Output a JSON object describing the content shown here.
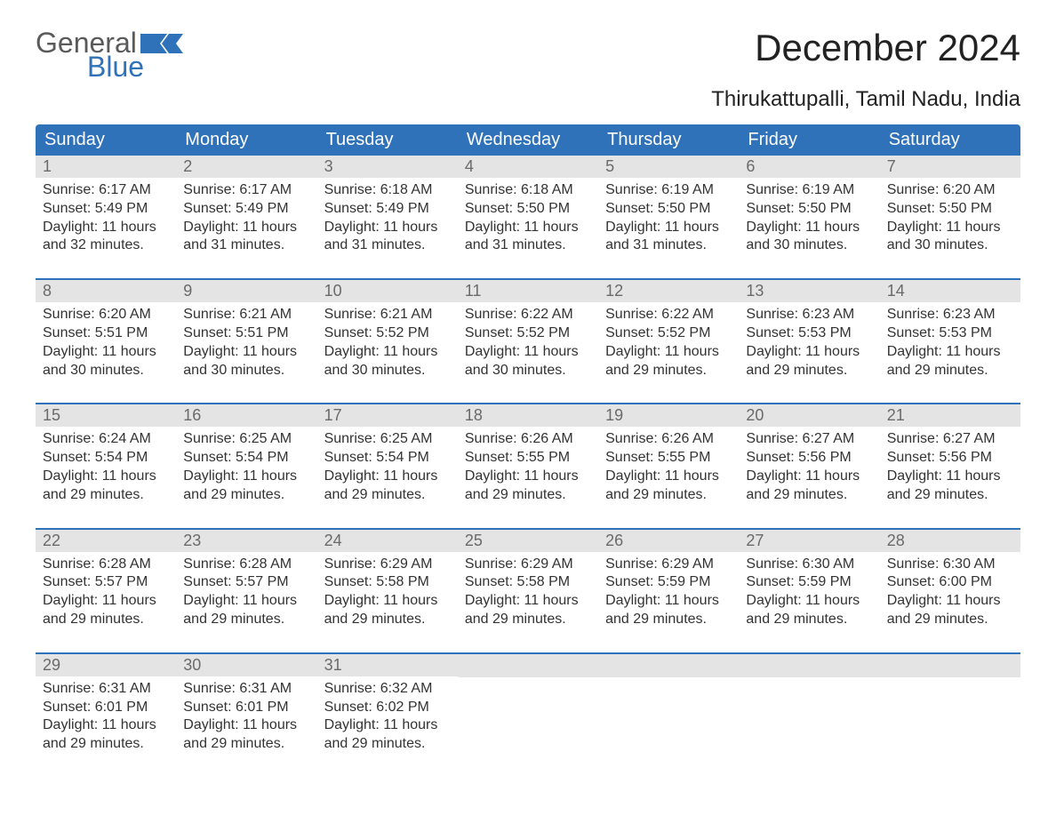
{
  "logo": {
    "text_general": "General",
    "text_blue": "Blue"
  },
  "title": "December 2024",
  "subtitle": "Thirukattupalli, Tamil Nadu, India",
  "colors": {
    "header_bg": "#2f72b9",
    "header_text": "#ffffff",
    "daynum_bg": "#e4e4e4",
    "daynum_text": "#6a6a6a",
    "body_text": "#333333",
    "title_text": "#222222",
    "logo_general": "#5a5a5a",
    "logo_blue": "#2f72b9",
    "background": "#ffffff"
  },
  "fonts": {
    "title_size": 42,
    "subtitle_size": 24,
    "dayheader_size": 20,
    "daynum_size": 18,
    "content_size": 16,
    "logo_size": 32
  },
  "day_headers": [
    "Sunday",
    "Monday",
    "Tuesday",
    "Wednesday",
    "Thursday",
    "Friday",
    "Saturday"
  ],
  "weeks": [
    [
      {
        "num": "1",
        "sunrise": "Sunrise: 6:17 AM",
        "sunset": "Sunset: 5:49 PM",
        "daylight1": "Daylight: 11 hours",
        "daylight2": "and 32 minutes."
      },
      {
        "num": "2",
        "sunrise": "Sunrise: 6:17 AM",
        "sunset": "Sunset: 5:49 PM",
        "daylight1": "Daylight: 11 hours",
        "daylight2": "and 31 minutes."
      },
      {
        "num": "3",
        "sunrise": "Sunrise: 6:18 AM",
        "sunset": "Sunset: 5:49 PM",
        "daylight1": "Daylight: 11 hours",
        "daylight2": "and 31 minutes."
      },
      {
        "num": "4",
        "sunrise": "Sunrise: 6:18 AM",
        "sunset": "Sunset: 5:50 PM",
        "daylight1": "Daylight: 11 hours",
        "daylight2": "and 31 minutes."
      },
      {
        "num": "5",
        "sunrise": "Sunrise: 6:19 AM",
        "sunset": "Sunset: 5:50 PM",
        "daylight1": "Daylight: 11 hours",
        "daylight2": "and 31 minutes."
      },
      {
        "num": "6",
        "sunrise": "Sunrise: 6:19 AM",
        "sunset": "Sunset: 5:50 PM",
        "daylight1": "Daylight: 11 hours",
        "daylight2": "and 30 minutes."
      },
      {
        "num": "7",
        "sunrise": "Sunrise: 6:20 AM",
        "sunset": "Sunset: 5:50 PM",
        "daylight1": "Daylight: 11 hours",
        "daylight2": "and 30 minutes."
      }
    ],
    [
      {
        "num": "8",
        "sunrise": "Sunrise: 6:20 AM",
        "sunset": "Sunset: 5:51 PM",
        "daylight1": "Daylight: 11 hours",
        "daylight2": "and 30 minutes."
      },
      {
        "num": "9",
        "sunrise": "Sunrise: 6:21 AM",
        "sunset": "Sunset: 5:51 PM",
        "daylight1": "Daylight: 11 hours",
        "daylight2": "and 30 minutes."
      },
      {
        "num": "10",
        "sunrise": "Sunrise: 6:21 AM",
        "sunset": "Sunset: 5:52 PM",
        "daylight1": "Daylight: 11 hours",
        "daylight2": "and 30 minutes."
      },
      {
        "num": "11",
        "sunrise": "Sunrise: 6:22 AM",
        "sunset": "Sunset: 5:52 PM",
        "daylight1": "Daylight: 11 hours",
        "daylight2": "and 30 minutes."
      },
      {
        "num": "12",
        "sunrise": "Sunrise: 6:22 AM",
        "sunset": "Sunset: 5:52 PM",
        "daylight1": "Daylight: 11 hours",
        "daylight2": "and 29 minutes."
      },
      {
        "num": "13",
        "sunrise": "Sunrise: 6:23 AM",
        "sunset": "Sunset: 5:53 PM",
        "daylight1": "Daylight: 11 hours",
        "daylight2": "and 29 minutes."
      },
      {
        "num": "14",
        "sunrise": "Sunrise: 6:23 AM",
        "sunset": "Sunset: 5:53 PM",
        "daylight1": "Daylight: 11 hours",
        "daylight2": "and 29 minutes."
      }
    ],
    [
      {
        "num": "15",
        "sunrise": "Sunrise: 6:24 AM",
        "sunset": "Sunset: 5:54 PM",
        "daylight1": "Daylight: 11 hours",
        "daylight2": "and 29 minutes."
      },
      {
        "num": "16",
        "sunrise": "Sunrise: 6:25 AM",
        "sunset": "Sunset: 5:54 PM",
        "daylight1": "Daylight: 11 hours",
        "daylight2": "and 29 minutes."
      },
      {
        "num": "17",
        "sunrise": "Sunrise: 6:25 AM",
        "sunset": "Sunset: 5:54 PM",
        "daylight1": "Daylight: 11 hours",
        "daylight2": "and 29 minutes."
      },
      {
        "num": "18",
        "sunrise": "Sunrise: 6:26 AM",
        "sunset": "Sunset: 5:55 PM",
        "daylight1": "Daylight: 11 hours",
        "daylight2": "and 29 minutes."
      },
      {
        "num": "19",
        "sunrise": "Sunrise: 6:26 AM",
        "sunset": "Sunset: 5:55 PM",
        "daylight1": "Daylight: 11 hours",
        "daylight2": "and 29 minutes."
      },
      {
        "num": "20",
        "sunrise": "Sunrise: 6:27 AM",
        "sunset": "Sunset: 5:56 PM",
        "daylight1": "Daylight: 11 hours",
        "daylight2": "and 29 minutes."
      },
      {
        "num": "21",
        "sunrise": "Sunrise: 6:27 AM",
        "sunset": "Sunset: 5:56 PM",
        "daylight1": "Daylight: 11 hours",
        "daylight2": "and 29 minutes."
      }
    ],
    [
      {
        "num": "22",
        "sunrise": "Sunrise: 6:28 AM",
        "sunset": "Sunset: 5:57 PM",
        "daylight1": "Daylight: 11 hours",
        "daylight2": "and 29 minutes."
      },
      {
        "num": "23",
        "sunrise": "Sunrise: 6:28 AM",
        "sunset": "Sunset: 5:57 PM",
        "daylight1": "Daylight: 11 hours",
        "daylight2": "and 29 minutes."
      },
      {
        "num": "24",
        "sunrise": "Sunrise: 6:29 AM",
        "sunset": "Sunset: 5:58 PM",
        "daylight1": "Daylight: 11 hours",
        "daylight2": "and 29 minutes."
      },
      {
        "num": "25",
        "sunrise": "Sunrise: 6:29 AM",
        "sunset": "Sunset: 5:58 PM",
        "daylight1": "Daylight: 11 hours",
        "daylight2": "and 29 minutes."
      },
      {
        "num": "26",
        "sunrise": "Sunrise: 6:29 AM",
        "sunset": "Sunset: 5:59 PM",
        "daylight1": "Daylight: 11 hours",
        "daylight2": "and 29 minutes."
      },
      {
        "num": "27",
        "sunrise": "Sunrise: 6:30 AM",
        "sunset": "Sunset: 5:59 PM",
        "daylight1": "Daylight: 11 hours",
        "daylight2": "and 29 minutes."
      },
      {
        "num": "28",
        "sunrise": "Sunrise: 6:30 AM",
        "sunset": "Sunset: 6:00 PM",
        "daylight1": "Daylight: 11 hours",
        "daylight2": "and 29 minutes."
      }
    ],
    [
      {
        "num": "29",
        "sunrise": "Sunrise: 6:31 AM",
        "sunset": "Sunset: 6:01 PM",
        "daylight1": "Daylight: 11 hours",
        "daylight2": "and 29 minutes."
      },
      {
        "num": "30",
        "sunrise": "Sunrise: 6:31 AM",
        "sunset": "Sunset: 6:01 PM",
        "daylight1": "Daylight: 11 hours",
        "daylight2": "and 29 minutes."
      },
      {
        "num": "31",
        "sunrise": "Sunrise: 6:32 AM",
        "sunset": "Sunset: 6:02 PM",
        "daylight1": "Daylight: 11 hours",
        "daylight2": "and 29 minutes."
      },
      null,
      null,
      null,
      null
    ]
  ]
}
